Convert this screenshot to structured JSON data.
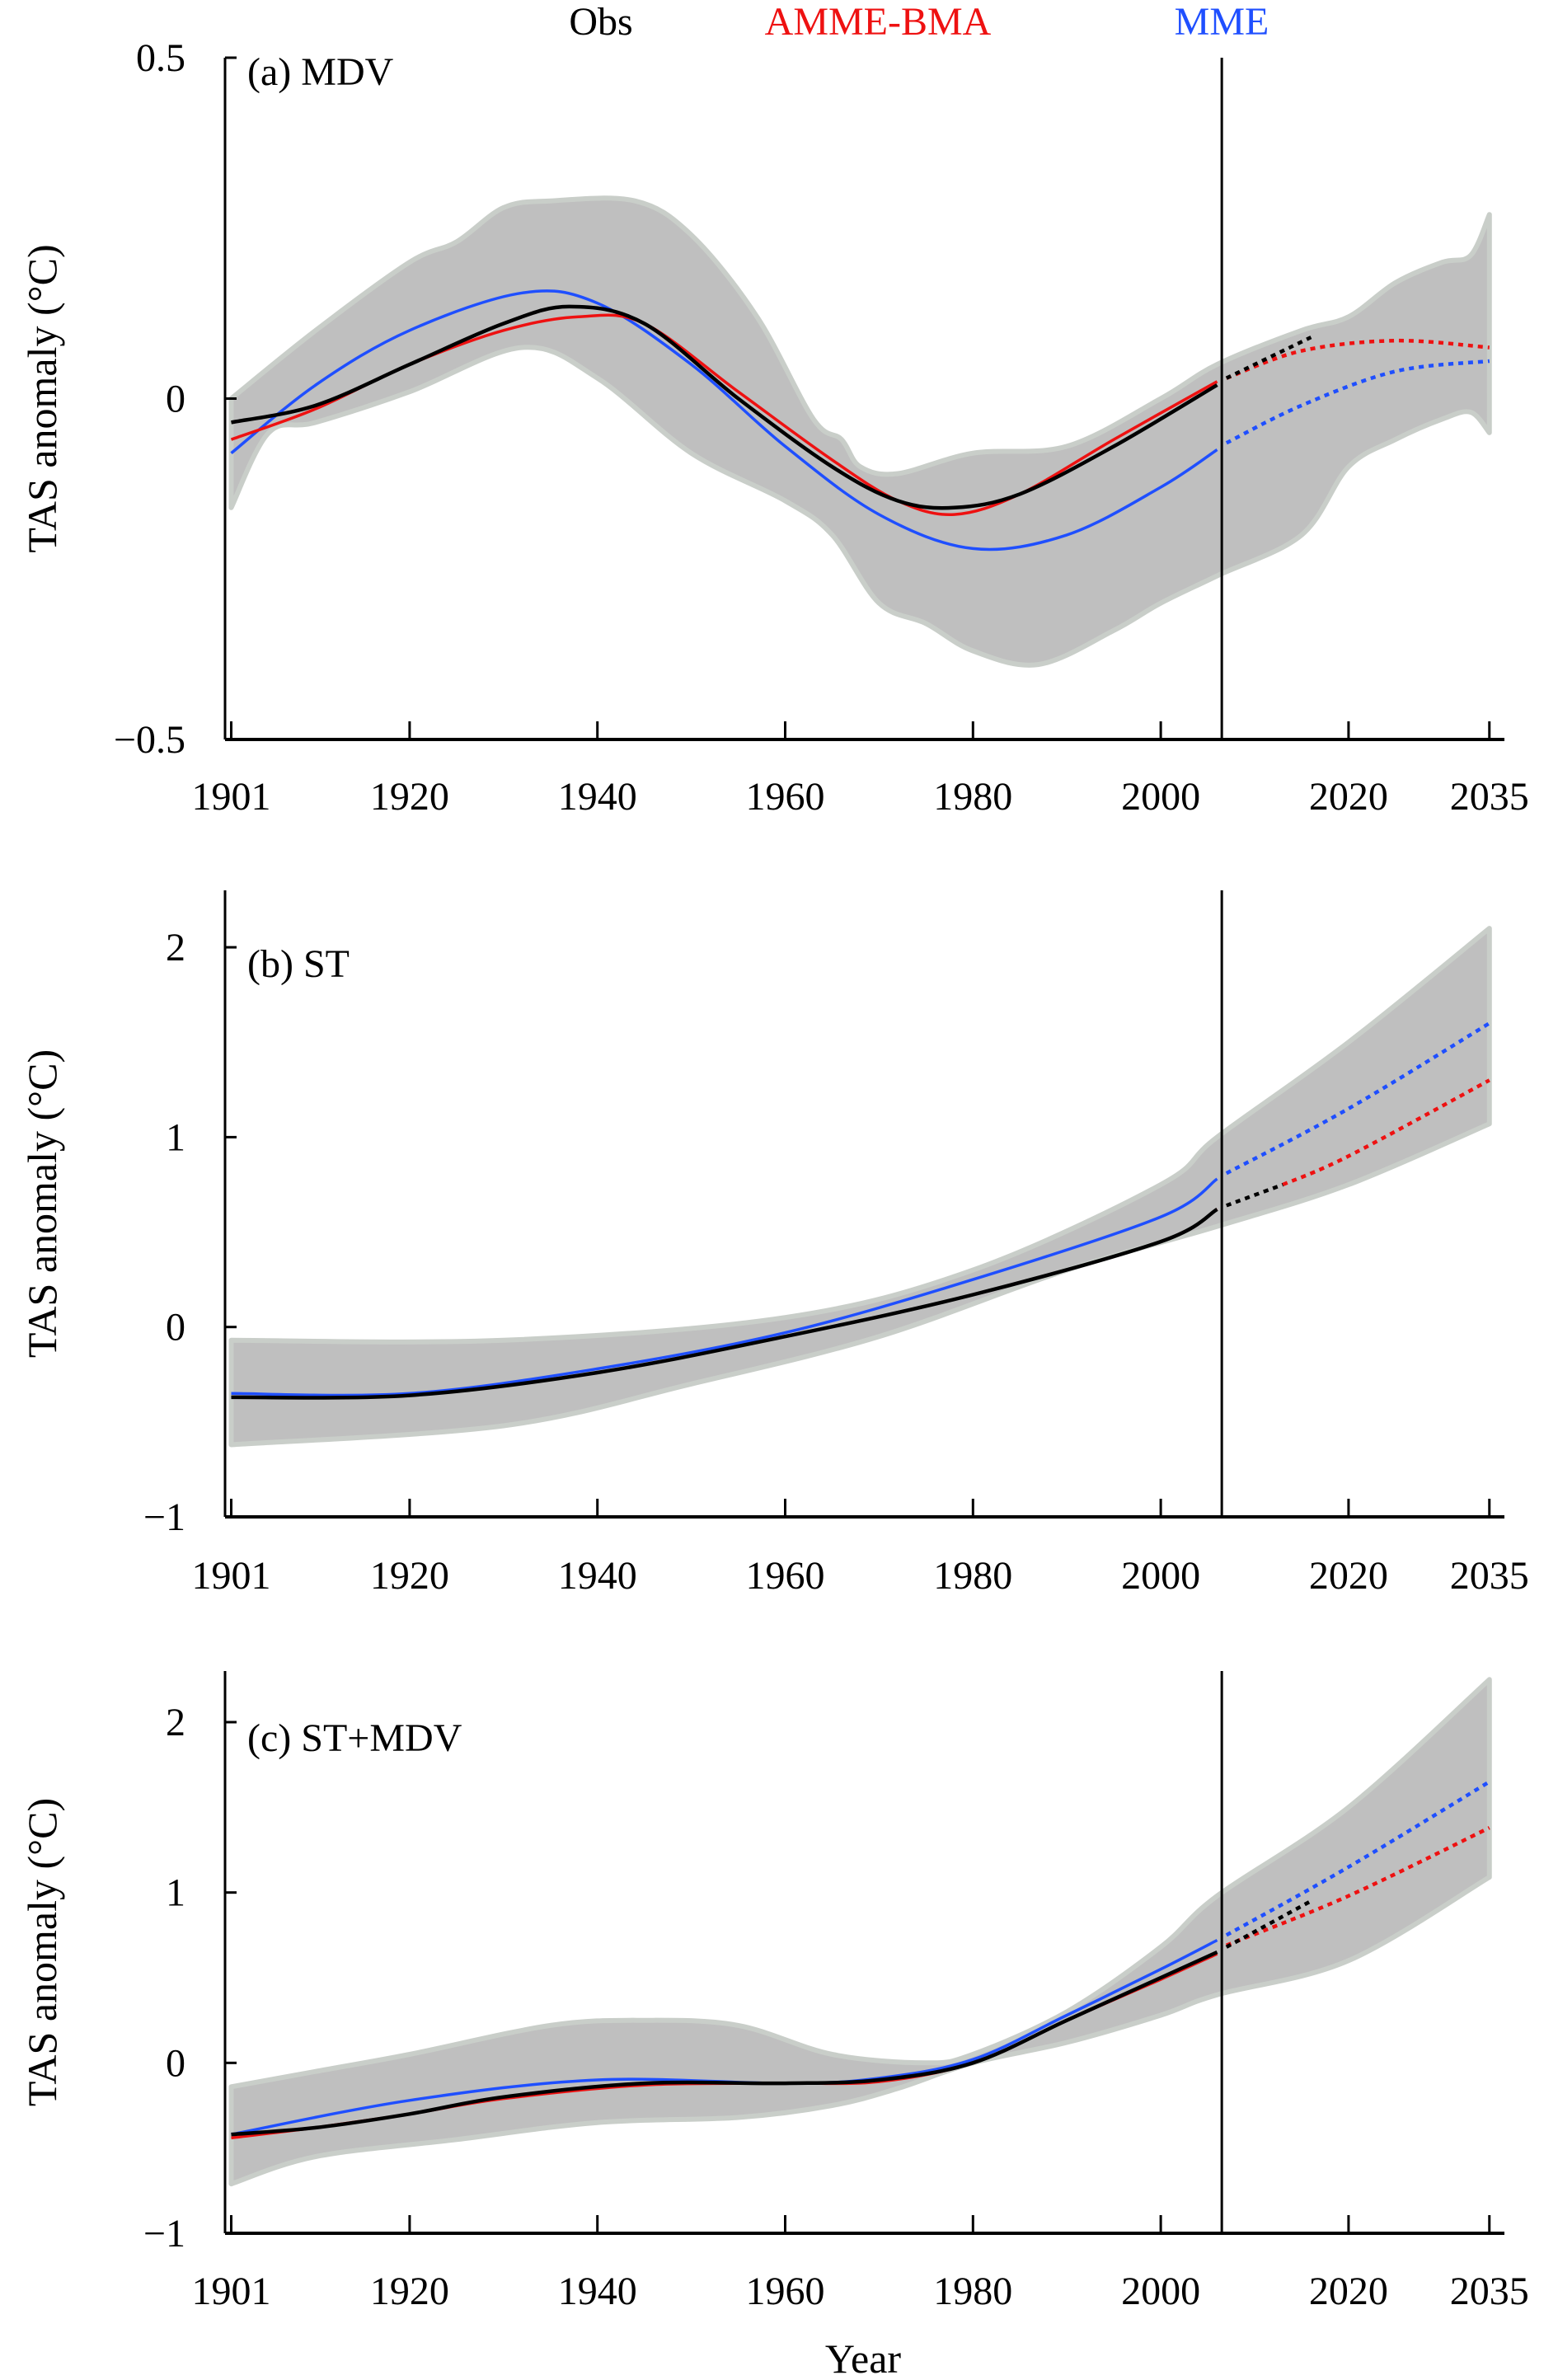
{
  "legend": [
    {
      "label": "Obs",
      "color": "#000000"
    },
    {
      "label": "AMME-BMA",
      "color": "#ee1111"
    },
    {
      "label": "MME",
      "color": "#1f4fff"
    }
  ],
  "chart_data": [
    {
      "type": "line",
      "title": "(a) MDV",
      "xlabel": "",
      "ylabel": "TAS anomaly (°C)",
      "xlim": [
        1901,
        2035
      ],
      "ylim": [
        -0.5,
        0.5
      ],
      "xticks": [
        "1901",
        "1920",
        "1940",
        "1960",
        "1980",
        "2000",
        "2020",
        "2035"
      ],
      "yticks": [
        "0.5",
        "0",
        "−0.5"
      ],
      "ytick_values": [
        0.5,
        0,
        -0.5
      ],
      "divider_year": 2006.5,
      "band": {
        "upper": [
          [
            1901,
            0.0
          ],
          [
            1910,
            0.1
          ],
          [
            1920,
            0.2
          ],
          [
            1925,
            0.23
          ],
          [
            1930,
            0.28
          ],
          [
            1935,
            0.29
          ],
          [
            1944,
            0.29
          ],
          [
            1950,
            0.24
          ],
          [
            1957,
            0.12
          ],
          [
            1963,
            -0.03
          ],
          [
            1966,
            -0.06
          ],
          [
            1968,
            -0.1
          ],
          [
            1972,
            -0.11
          ],
          [
            1980,
            -0.08
          ],
          [
            1990,
            -0.07
          ],
          [
            2000,
            0.0
          ],
          [
            2006,
            0.05
          ],
          [
            2015,
            0.1
          ],
          [
            2020,
            0.12
          ],
          [
            2025,
            0.17
          ],
          [
            2030,
            0.2
          ],
          [
            2033,
            0.21
          ],
          [
            2035,
            0.27
          ]
        ],
        "lower": [
          [
            1901,
            -0.16
          ],
          [
            1905,
            -0.05
          ],
          [
            1910,
            -0.035
          ],
          [
            1920,
            0.01
          ],
          [
            1932,
            0.075
          ],
          [
            1940,
            0.03
          ],
          [
            1950,
            -0.08
          ],
          [
            1960,
            -0.15
          ],
          [
            1965,
            -0.2
          ],
          [
            1970,
            -0.3
          ],
          [
            1975,
            -0.33
          ],
          [
            1980,
            -0.37
          ],
          [
            1987,
            -0.39
          ],
          [
            1995,
            -0.34
          ],
          [
            2000,
            -0.3
          ],
          [
            2006,
            -0.26
          ],
          [
            2015,
            -0.2
          ],
          [
            2020,
            -0.1
          ],
          [
            2025,
            -0.06
          ],
          [
            2030,
            -0.03
          ],
          [
            2033,
            -0.02
          ],
          [
            2035,
            -0.05
          ]
        ]
      },
      "series": [
        {
          "name": "MME",
          "color": "#1f4fff",
          "hist": [
            [
              1901,
              -0.08
            ],
            [
              1910,
              0.02
            ],
            [
              1920,
              0.1
            ],
            [
              1932,
              0.155
            ],
            [
              1940,
              0.14
            ],
            [
              1950,
              0.05
            ],
            [
              1960,
              -0.07
            ],
            [
              1970,
              -0.17
            ],
            [
              1980,
              -0.22
            ],
            [
              1990,
              -0.2
            ],
            [
              2000,
              -0.13
            ],
            [
              2006,
              -0.075
            ]
          ],
          "proj": [
            [
              2007,
              -0.065
            ],
            [
              2015,
              -0.01
            ],
            [
              2025,
              0.04
            ],
            [
              2035,
              0.055
            ]
          ]
        },
        {
          "name": "AMME-BMA",
          "color": "#ee1111",
          "hist": [
            [
              1901,
              -0.06
            ],
            [
              1910,
              -0.015
            ],
            [
              1920,
              0.05
            ],
            [
              1930,
              0.1
            ],
            [
              1938,
              0.12
            ],
            [
              1945,
              0.11
            ],
            [
              1955,
              0.01
            ],
            [
              1965,
              -0.09
            ],
            [
              1972,
              -0.15
            ],
            [
              1978,
              -0.17
            ],
            [
              1985,
              -0.14
            ],
            [
              1995,
              -0.06
            ],
            [
              2006,
              0.025
            ]
          ],
          "proj": [
            [
              2007,
              0.03
            ],
            [
              2015,
              0.07
            ],
            [
              2025,
              0.085
            ],
            [
              2035,
              0.075
            ]
          ]
        },
        {
          "name": "Obs",
          "color": "#000000",
          "hist": [
            [
              1901,
              -0.035
            ],
            [
              1910,
              -0.01
            ],
            [
              1920,
              0.05
            ],
            [
              1930,
              0.11
            ],
            [
              1937,
              0.135
            ],
            [
              1945,
              0.11
            ],
            [
              1955,
              0.0
            ],
            [
              1965,
              -0.1
            ],
            [
              1972,
              -0.15
            ],
            [
              1978,
              -0.16
            ],
            [
              1985,
              -0.14
            ],
            [
              1995,
              -0.07
            ],
            [
              2006,
              0.02
            ]
          ],
          "proj": [
            [
              2007,
              0.03
            ],
            [
              2016,
              0.09
            ]
          ]
        }
      ]
    },
    {
      "type": "line",
      "title": "(b) ST",
      "xlabel": "",
      "ylabel": "TAS anomaly (°C)",
      "xlim": [
        1901,
        2035
      ],
      "ylim": [
        -1,
        2.3
      ],
      "xticks": [
        "1901",
        "1920",
        "1940",
        "1960",
        "1980",
        "2000",
        "2020",
        "2035"
      ],
      "yticks": [
        "2",
        "1",
        "0",
        "−1"
      ],
      "ytick_values": [
        2,
        1,
        0,
        -1
      ],
      "divider_year": 2006.5,
      "band": {
        "upper": [
          [
            1901,
            -0.07
          ],
          [
            1930,
            -0.07
          ],
          [
            1960,
            0.05
          ],
          [
            1980,
            0.3
          ],
          [
            2000,
            0.75
          ],
          [
            2006,
            1.0
          ],
          [
            2020,
            1.5
          ],
          [
            2035,
            2.1
          ]
        ],
        "lower": [
          [
            1901,
            -0.62
          ],
          [
            1930,
            -0.52
          ],
          [
            1950,
            -0.3
          ],
          [
            1970,
            -0.05
          ],
          [
            1990,
            0.3
          ],
          [
            2006,
            0.53
          ],
          [
            2020,
            0.75
          ],
          [
            2035,
            1.07
          ]
        ]
      },
      "series": [
        {
          "name": "MME",
          "color": "#1f4fff",
          "hist": [
            [
              1901,
              -0.35
            ],
            [
              1920,
              -0.35
            ],
            [
              1940,
              -0.22
            ],
            [
              1960,
              -0.03
            ],
            [
              1980,
              0.25
            ],
            [
              2000,
              0.58
            ],
            [
              2006,
              0.78
            ]
          ],
          "proj": [
            [
              2007,
              0.81
            ],
            [
              2020,
              1.15
            ],
            [
              2035,
              1.6
            ]
          ]
        },
        {
          "name": "AMME-BMA",
          "color": "#ee1111",
          "hist": [
            [
              1901,
              -0.37
            ],
            [
              1920,
              -0.36
            ],
            [
              1940,
              -0.24
            ],
            [
              1960,
              -0.05
            ],
            [
              1980,
              0.17
            ],
            [
              2000,
              0.45
            ],
            [
              2006,
              0.62
            ]
          ],
          "proj": [
            [
              2013,
              0.75
            ],
            [
              2020,
              0.9
            ],
            [
              2035,
              1.3
            ]
          ]
        },
        {
          "name": "Obs",
          "color": "#000000",
          "hist": [
            [
              1901,
              -0.37
            ],
            [
              1920,
              -0.36
            ],
            [
              1940,
              -0.24
            ],
            [
              1960,
              -0.05
            ],
            [
              1980,
              0.17
            ],
            [
              2000,
              0.45
            ],
            [
              2006,
              0.62
            ]
          ],
          "proj": [
            [
              2007,
              0.64
            ],
            [
              2013,
              0.75
            ]
          ]
        }
      ]
    },
    {
      "type": "line",
      "title": "(c) ST+MDV",
      "xlabel": "Year",
      "ylabel": "TAS anomaly (°C)",
      "xlim": [
        1901,
        2035
      ],
      "ylim": [
        -1,
        2.3
      ],
      "xticks": [
        "1901",
        "1920",
        "1940",
        "1960",
        "1980",
        "2000",
        "2020",
        "2035"
      ],
      "yticks": [
        "2",
        "1",
        "0",
        "−1"
      ],
      "ytick_values": [
        2,
        1,
        0,
        -1
      ],
      "divider_year": 2006.5,
      "band": {
        "upper": [
          [
            1901,
            -0.14
          ],
          [
            1910,
            -0.05
          ],
          [
            1920,
            0.05
          ],
          [
            1935,
            0.22
          ],
          [
            1945,
            0.25
          ],
          [
            1955,
            0.22
          ],
          [
            1965,
            0.05
          ],
          [
            1975,
            0.0
          ],
          [
            1980,
            0.05
          ],
          [
            1990,
            0.3
          ],
          [
            2000,
            0.68
          ],
          [
            2006,
            0.98
          ],
          [
            2020,
            1.5
          ],
          [
            2035,
            2.25
          ]
        ],
        "lower": [
          [
            1901,
            -0.71
          ],
          [
            1910,
            -0.55
          ],
          [
            1925,
            -0.45
          ],
          [
            1940,
            -0.35
          ],
          [
            1955,
            -0.32
          ],
          [
            1965,
            -0.25
          ],
          [
            1972,
            -0.15
          ],
          [
            1980,
            0.0
          ],
          [
            1990,
            0.12
          ],
          [
            2000,
            0.28
          ],
          [
            2006,
            0.4
          ],
          [
            2020,
            0.6
          ],
          [
            2035,
            1.09
          ]
        ]
      },
      "series": [
        {
          "name": "MME",
          "color": "#1f4fff",
          "hist": [
            [
              1901,
              -0.42
            ],
            [
              1920,
              -0.22
            ],
            [
              1940,
              -0.1
            ],
            [
              1960,
              -0.12
            ],
            [
              1970,
              -0.09
            ],
            [
              1980,
              0.02
            ],
            [
              1990,
              0.28
            ],
            [
              2000,
              0.55
            ],
            [
              2006,
              0.72
            ]
          ],
          "proj": [
            [
              2007,
              0.75
            ],
            [
              2020,
              1.15
            ],
            [
              2035,
              1.65
            ]
          ]
        },
        {
          "name": "AMME-BMA",
          "color": "#ee1111",
          "hist": [
            [
              1901,
              -0.44
            ],
            [
              1910,
              -0.38
            ],
            [
              1920,
              -0.3
            ],
            [
              1930,
              -0.21
            ],
            [
              1945,
              -0.13
            ],
            [
              1960,
              -0.12
            ],
            [
              1970,
              -0.11
            ],
            [
              1980,
              0.0
            ],
            [
              1990,
              0.25
            ],
            [
              2000,
              0.49
            ],
            [
              2006,
              0.64
            ]
          ],
          "proj": [
            [
              2007,
              0.69
            ],
            [
              2020,
              0.98
            ],
            [
              2035,
              1.38
            ]
          ]
        },
        {
          "name": "Obs",
          "color": "#000000",
          "hist": [
            [
              1901,
              -0.42
            ],
            [
              1910,
              -0.38
            ],
            [
              1920,
              -0.3
            ],
            [
              1930,
              -0.2
            ],
            [
              1945,
              -0.12
            ],
            [
              1960,
              -0.12
            ],
            [
              1970,
              -0.1
            ],
            [
              1980,
              0.0
            ],
            [
              1990,
              0.25
            ],
            [
              2000,
              0.5
            ],
            [
              2006,
              0.65
            ]
          ],
          "proj": [
            [
              2007,
              0.68
            ],
            [
              2016,
              0.95
            ]
          ]
        }
      ]
    }
  ]
}
